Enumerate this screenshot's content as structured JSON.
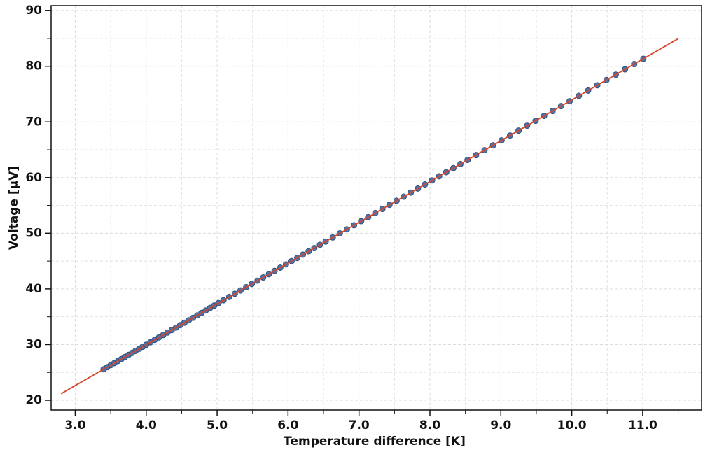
{
  "chart_data": {
    "type": "scatter",
    "xlabel": "Temperature difference [K]",
    "ylabel": "Voltage [µV]",
    "xlim": [
      2.66,
      11.83
    ],
    "ylim": [
      18.24,
      90.9
    ],
    "xticks": [
      {
        "value": 3,
        "label": "3.0"
      },
      {
        "value": 4,
        "label": "4.0"
      },
      {
        "value": 5,
        "label": "5.0"
      },
      {
        "value": 6,
        "label": "6.0"
      },
      {
        "value": 7,
        "label": "7.0"
      },
      {
        "value": 8,
        "label": "8.0"
      },
      {
        "value": 9,
        "label": "9.0"
      },
      {
        "value": 10,
        "label": "10.0"
      },
      {
        "value": 11,
        "label": "11.0"
      }
    ],
    "yticks": [
      20,
      30,
      40,
      50,
      60,
      70,
      80,
      90
    ],
    "xminorticks": [
      3.5,
      4.5,
      5.5,
      6.5,
      7.5,
      8.5,
      9.5,
      10.5,
      11.5
    ],
    "yminorticks": [
      25,
      35,
      45,
      55,
      65,
      75,
      85
    ],
    "grid": true,
    "points": {
      "color": "#4f74a8",
      "x": [
        3.4,
        3.45,
        3.5,
        3.55,
        3.6,
        3.65,
        3.7,
        3.75,
        3.8,
        3.85,
        3.9,
        3.95,
        4.0,
        4.06,
        4.12,
        4.18,
        4.24,
        4.3,
        4.36,
        4.42,
        4.48,
        4.54,
        4.6,
        4.66,
        4.72,
        4.78,
        4.84,
        4.9,
        4.96,
        5.02,
        5.09,
        5.17,
        5.25,
        5.33,
        5.41,
        5.49,
        5.57,
        5.65,
        5.73,
        5.81,
        5.89,
        5.97,
        6.05,
        6.13,
        6.21,
        6.29,
        6.37,
        6.45,
        6.53,
        6.63,
        6.73,
        6.83,
        6.93,
        7.03,
        7.13,
        7.23,
        7.33,
        7.43,
        7.53,
        7.63,
        7.73,
        7.83,
        7.93,
        8.03,
        8.13,
        8.23,
        8.33,
        8.43,
        8.53,
        8.65,
        8.77,
        8.89,
        9.01,
        9.13,
        9.25,
        9.37,
        9.49,
        9.61,
        9.73,
        9.85,
        9.97,
        10.1,
        10.23,
        10.36,
        10.49,
        10.62,
        10.75,
        10.88,
        11.01
      ],
      "y": [
        25.57,
        25.94,
        26.31,
        26.67,
        27.04,
        27.4,
        27.77,
        28.14,
        28.5,
        28.87,
        29.24,
        29.6,
        29.97,
        30.41,
        30.85,
        31.29,
        31.73,
        32.17,
        32.61,
        33.05,
        33.49,
        33.93,
        34.37,
        34.81,
        35.25,
        35.69,
        36.13,
        36.57,
        37.01,
        37.45,
        37.96,
        38.55,
        39.13,
        39.72,
        40.31,
        40.89,
        41.48,
        42.06,
        42.65,
        43.24,
        43.82,
        44.41,
        45.0,
        45.58,
        46.17,
        46.76,
        47.34,
        47.93,
        48.51,
        49.25,
        49.98,
        50.71,
        51.45,
        52.18,
        52.91,
        53.65,
        54.38,
        55.11,
        55.84,
        56.58,
        57.31,
        58.04,
        58.78,
        59.51,
        60.24,
        60.98,
        61.71,
        62.44,
        63.17,
        64.05,
        64.93,
        65.81,
        66.69,
        67.57,
        68.45,
        69.33,
        70.21,
        71.09,
        71.97,
        72.85,
        73.73,
        74.68,
        75.64,
        76.59,
        77.54,
        78.49,
        79.45,
        80.4,
        81.35
      ]
    },
    "fit": {
      "color": "#d6452a",
      "x": [
        2.8,
        11.5
      ],
      "y": [
        21.17,
        84.95
      ]
    }
  }
}
